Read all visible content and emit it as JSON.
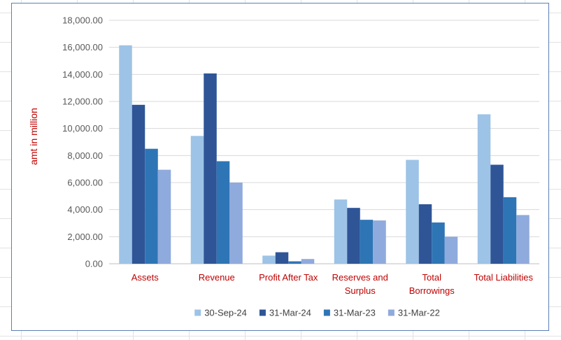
{
  "chart_data": {
    "type": "bar",
    "ylabel": "amt in million",
    "ylim": [
      0,
      18000
    ],
    "yticks": [
      "0.00",
      "2,000.00",
      "4,000.00",
      "6,000.00",
      "8,000.00",
      "10,000.00",
      "12,000.00",
      "14,000.00",
      "16,000.00",
      "18,000.00"
    ],
    "categories": [
      [
        "Assets"
      ],
      [
        "Revenue"
      ],
      [
        "Profit After Tax"
      ],
      [
        "Reserves and",
        "Surplus"
      ],
      [
        "Total",
        "Borrowings"
      ],
      [
        "Total Liabilities"
      ]
    ],
    "series": [
      {
        "name": "30-Sep-24",
        "color": "#9dc3e6",
        "values": [
          16150,
          9450,
          600,
          4750,
          7680,
          11050
        ]
      },
      {
        "name": "31-Mar-24",
        "color": "#2f5597",
        "values": [
          11750,
          14070,
          850,
          4130,
          4400,
          7320
        ]
      },
      {
        "name": "31-Mar-23",
        "color": "#2e75b6",
        "values": [
          8500,
          7580,
          180,
          3250,
          3050,
          4920
        ]
      },
      {
        "name": "31-Mar-22",
        "color": "#8faadc",
        "values": [
          6950,
          6000,
          350,
          3200,
          2000,
          3600
        ]
      }
    ],
    "legend_position": "bottom",
    "grid": true
  }
}
